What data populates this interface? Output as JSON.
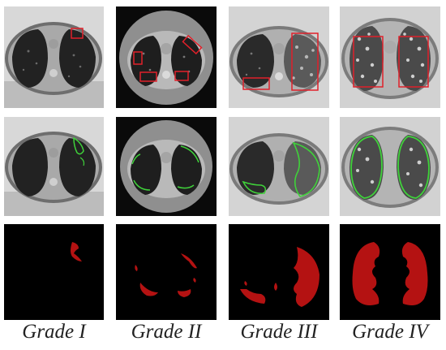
{
  "figure": {
    "grades": [
      {
        "label": "Grade I"
      },
      {
        "label": "Grade II"
      },
      {
        "label": "Grade III"
      },
      {
        "label": "Grade IV"
      }
    ],
    "rows": [
      "ct-with-boxes",
      "ct-with-contours",
      "segmentation-mask"
    ],
    "colors": {
      "box": "#e0202a",
      "contour": "#3fd23a",
      "mask": "#b41212",
      "mask_bg": "#000000",
      "ct_bg": "#0a0a0a"
    }
  }
}
